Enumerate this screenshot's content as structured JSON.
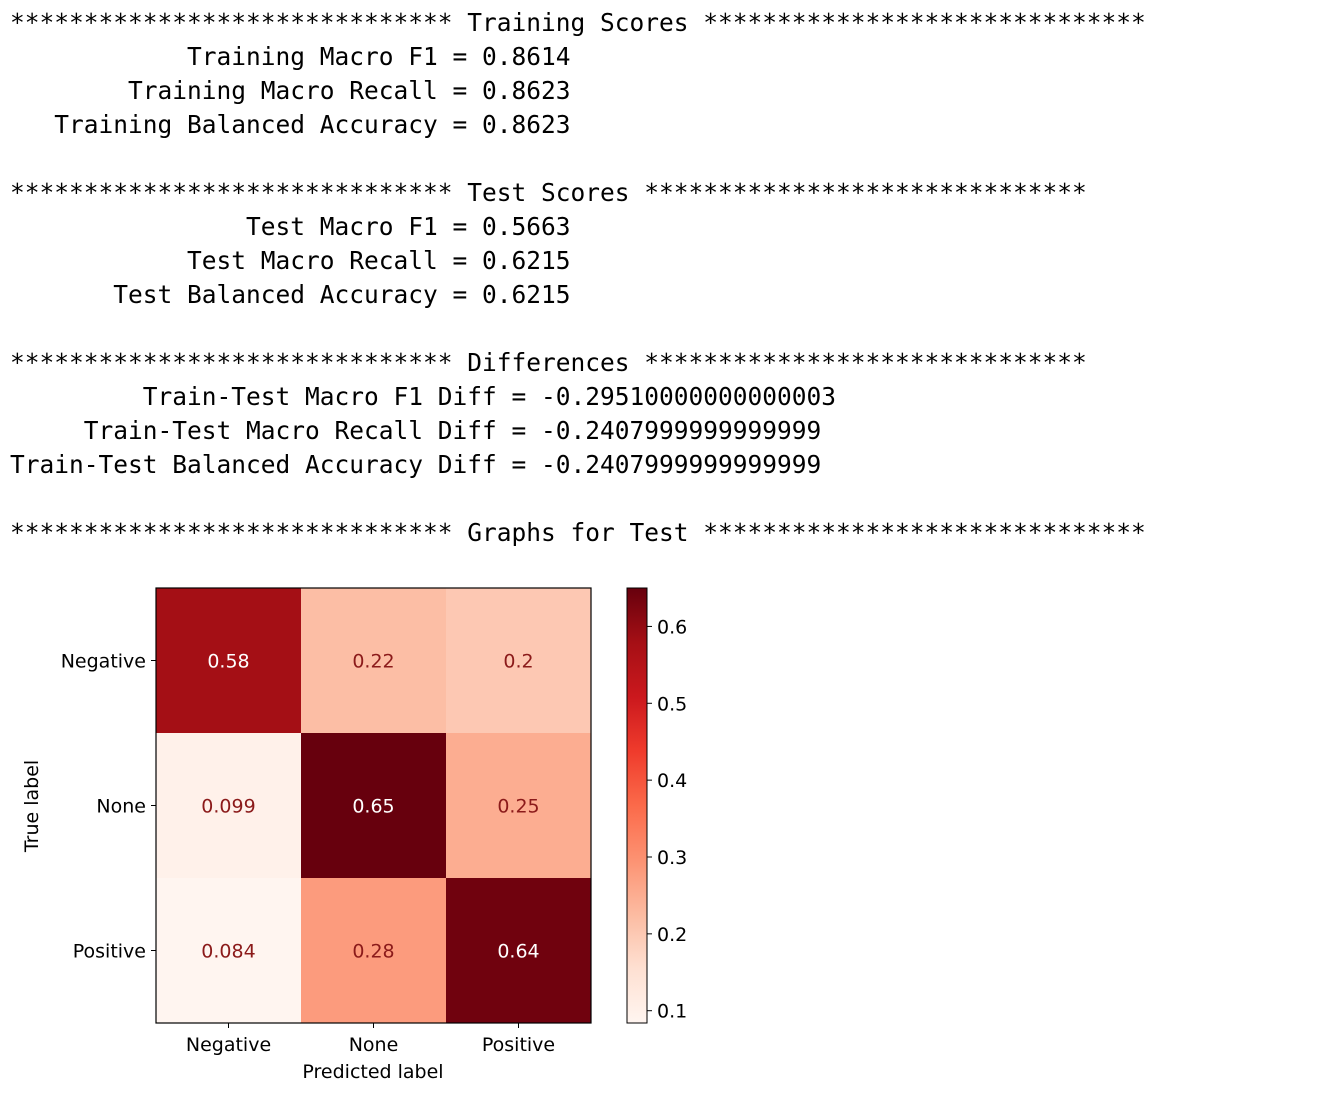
{
  "output_lines": [
    "****************************** Training Scores ******************************",
    "            Training Macro F1 = 0.8614",
    "        Training Macro Recall = 0.8623",
    "   Training Balanced Accuracy = 0.8623",
    "",
    "****************************** Test Scores ******************************",
    "                Test Macro F1 = 0.5663",
    "            Test Macro Recall = 0.6215",
    "       Test Balanced Accuracy = 0.6215",
    "",
    "****************************** Differences ******************************",
    "         Train-Test Macro F1 Diff = -0.29510000000000003",
    "     Train-Test Macro Recall Diff = -0.2407999999999999",
    "Train-Test Balanced Accuracy Diff = -0.2407999999999999",
    "",
    "****************************** Graphs for Test ******************************"
  ],
  "chart_data": {
    "type": "heatmap",
    "title": "",
    "xlabel": "Predicted label",
    "ylabel": "True label",
    "x_categories": [
      "Negative",
      "None",
      "Positive"
    ],
    "y_categories": [
      "Negative",
      "None",
      "Positive"
    ],
    "values": [
      [
        0.58,
        0.22,
        0.2
      ],
      [
        0.099,
        0.65,
        0.25
      ],
      [
        0.084,
        0.28,
        0.64
      ]
    ],
    "value_labels": [
      [
        "0.58",
        "0.22",
        "0.2"
      ],
      [
        "0.099",
        "0.65",
        "0.25"
      ],
      [
        "0.084",
        "0.28",
        "0.64"
      ]
    ],
    "colormap": "Reds",
    "color_range": [
      0.084,
      0.65
    ],
    "colorbar_ticks": [
      0.1,
      0.2,
      0.3,
      0.4,
      0.5,
      0.6
    ],
    "colorbar_tick_labels": [
      "0.1",
      "0.2",
      "0.3",
      "0.4",
      "0.5",
      "0.6"
    ],
    "grid": false
  }
}
